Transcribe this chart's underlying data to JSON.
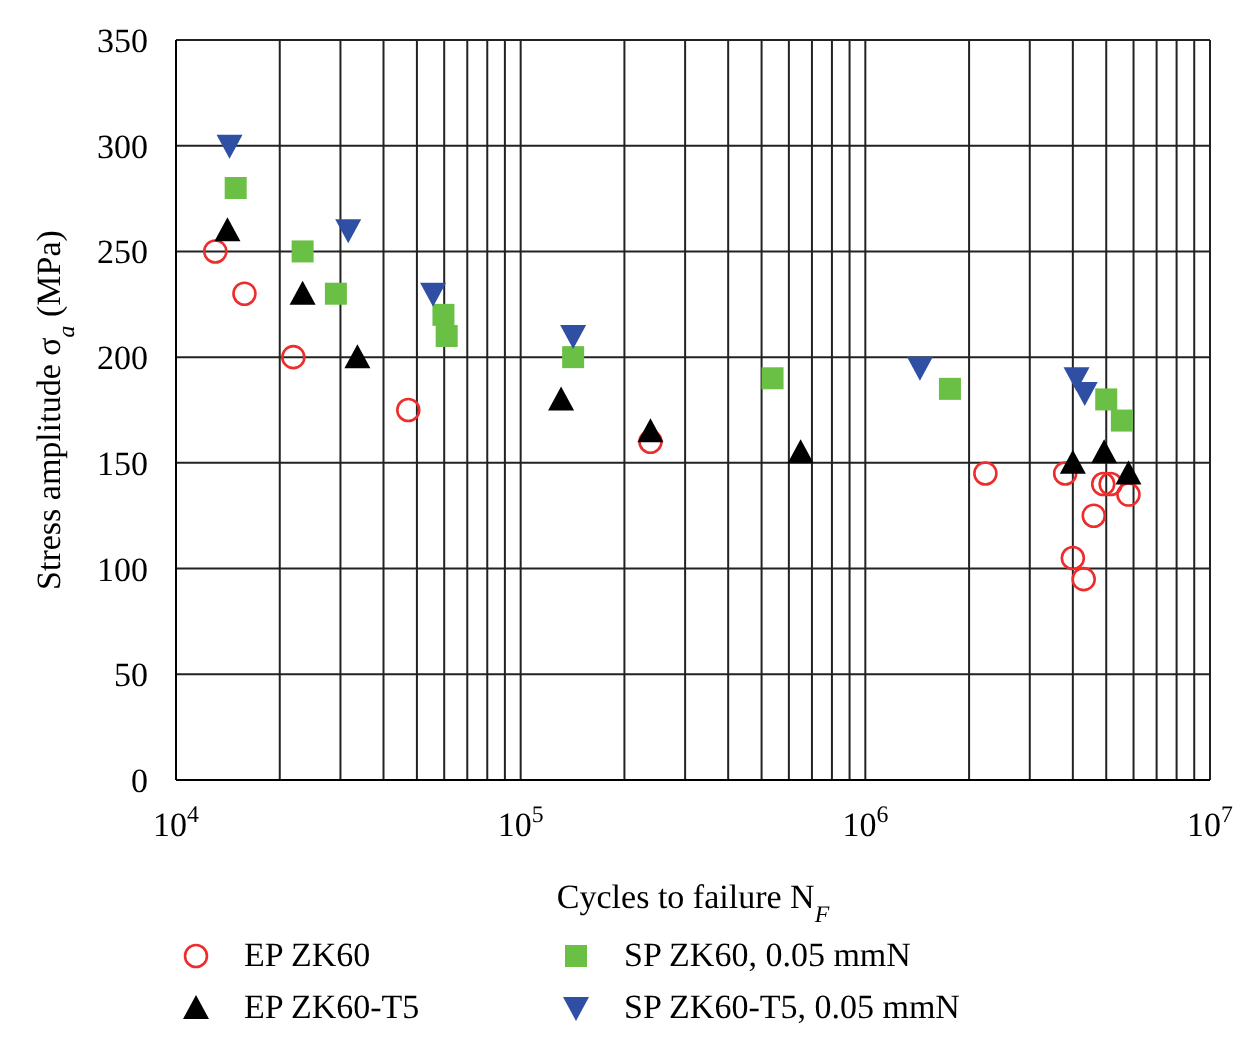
{
  "chart_data": {
    "type": "scatter",
    "xlabel": "Cycles to failure N$_{F}$",
    "ylabel": "Stress amplitude σ$_{a}$ (MPa)",
    "log": "x",
    "grid": true,
    "legend": "bottom",
    "xlim": [
      10000,
      10000000
    ],
    "xticks": [
      {
        "value": 10000,
        "label": "10$^{4}$"
      },
      {
        "value": 20000,
        "label": null
      },
      {
        "value": 30000,
        "label": null
      },
      {
        "value": 40000,
        "label": null
      },
      {
        "value": 50000,
        "label": null
      },
      {
        "value": 60000,
        "label": null
      },
      {
        "value": 70000,
        "label": null
      },
      {
        "value": 80000,
        "label": null
      },
      {
        "value": 90000,
        "label": null
      },
      {
        "value": 100000,
        "label": "10$^{5}$"
      },
      {
        "value": 200000,
        "label": null
      },
      {
        "value": 300000,
        "label": null
      },
      {
        "value": 400000,
        "label": null
      },
      {
        "value": 500000,
        "label": null
      },
      {
        "value": 600000,
        "label": null
      },
      {
        "value": 700000,
        "label": null
      },
      {
        "value": 800000,
        "label": null
      },
      {
        "value": 900000,
        "label": null
      },
      {
        "value": 1000000,
        "label": "10$^{6}$"
      },
      {
        "value": 2000000,
        "label": null
      },
      {
        "value": 3000000,
        "label": null
      },
      {
        "value": 4000000,
        "label": null
      },
      {
        "value": 5000000,
        "label": null
      },
      {
        "value": 6000000,
        "label": null
      },
      {
        "value": 7000000,
        "label": null
      },
      {
        "value": 8000000,
        "label": null
      },
      {
        "value": 9000000,
        "label": null
      },
      {
        "value": 10000000,
        "label": "10$^{7}$"
      }
    ],
    "ylim": [
      0,
      350
    ],
    "yticks": [
      0,
      50,
      100,
      150,
      200,
      250,
      300,
      350
    ],
    "series": [
      {
        "name": "EP ZK60",
        "color": "#ee2c2c",
        "marker": "circle",
        "x": [
          13000,
          15800,
          21900,
          47200,
          238000,
          2230000,
          3800000,
          4900000,
          5150000,
          5800000,
          4600000,
          4000000,
          4300000
        ],
        "values": [
          250,
          230,
          200,
          175,
          160,
          145,
          145,
          140,
          140,
          135,
          125,
          105,
          95
        ]
      },
      {
        "name": "SP ZK60, 0.05 mmN",
        "color": "#6abf45",
        "marker": "square",
        "x": [
          14900,
          23300,
          29100,
          59700,
          61000,
          142000,
          538000,
          1760000,
          5000000,
          5550000
        ],
        "values": [
          280,
          250,
          230,
          220,
          210,
          200,
          190,
          185,
          180,
          170
        ]
      },
      {
        "name": "EP ZK60-T5",
        "color": "#000000",
        "marker": "triangle",
        "x": [
          14100,
          23300,
          33600,
          131000,
          238000,
          649000,
          4000000,
          4930000,
          5800000
        ],
        "values": [
          260,
          230,
          200,
          180,
          165,
          155,
          150,
          155,
          145
        ]
      },
      {
        "name": "SP ZK60-T5, 0.05 mmN",
        "color": "#2e4fa3",
        "marker": "triangle-down",
        "x": [
          14300,
          31600,
          55700,
          142000,
          1440000,
          4100000,
          4330000
        ],
        "values": [
          300,
          260,
          230,
          210,
          195,
          190,
          183
        ]
      }
    ]
  }
}
